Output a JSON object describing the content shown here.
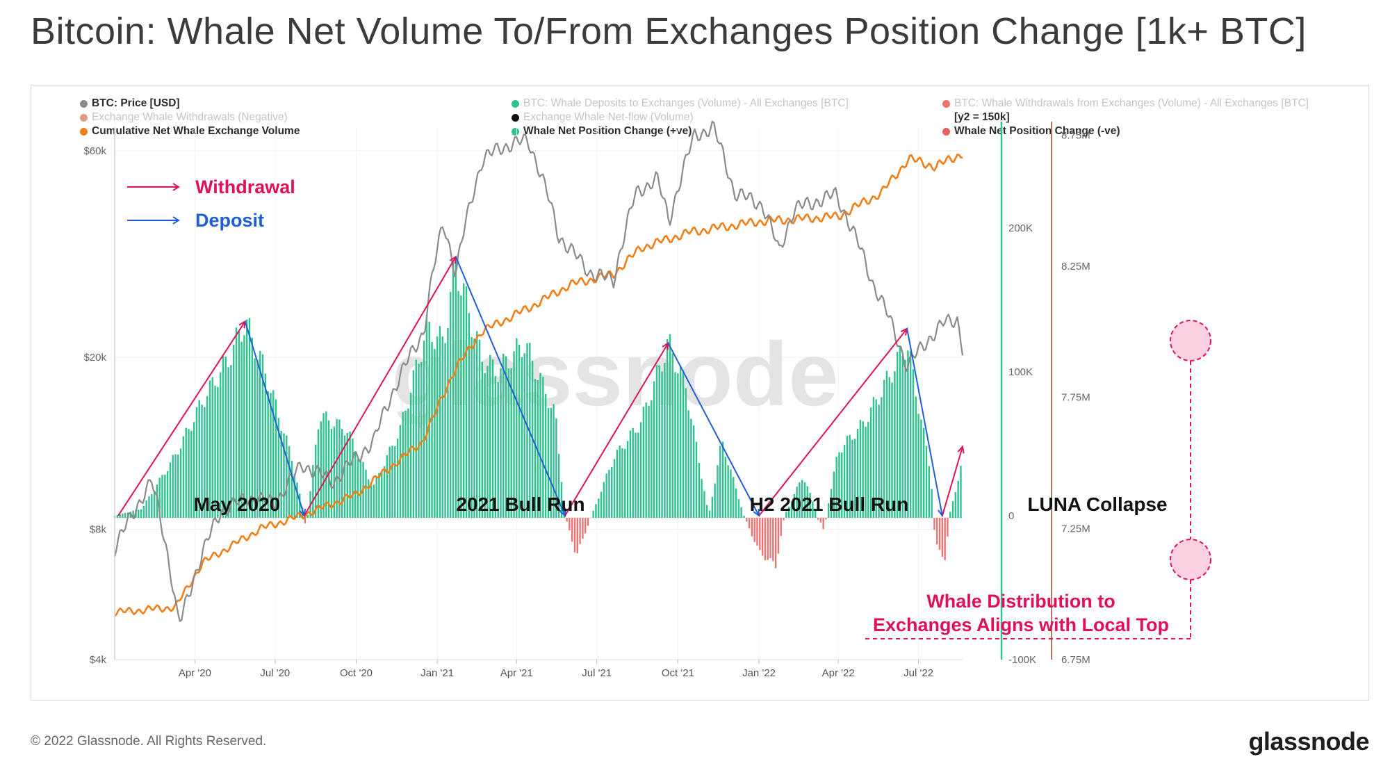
{
  "title": "Bitcoin: Whale Net Volume To/From Exchanges Position Change [1k+ BTC]",
  "legend": [
    {
      "label": "BTC: Price [USD]",
      "color": "#8a8a8a",
      "muted": false
    },
    {
      "label": "Exchange Whale Withdrawals (Negative)",
      "color": "#e09a80",
      "muted": true
    },
    {
      "label": "Cumulative Net Whale Exchange Volume",
      "color": "#f07f1a",
      "muted": false
    },
    {
      "label": "BTC: Whale Deposits to Exchanges (Volume) - All Exchanges [BTC]",
      "color": "#2ec28e",
      "muted": true
    },
    {
      "label": "Exchange Whale Net-flow (Volume)",
      "color": "#111111",
      "muted": true
    },
    {
      "label": "Whale Net Position Change (+ve)",
      "color": "#2ec28e",
      "muted": false
    },
    {
      "label": "BTC: Whale Withdrawals from Exchanges (Volume) - All Exchanges [BTC]",
      "color": "#f07070",
      "muted": true
    },
    {
      "label": "[y2 = 150k]",
      "color": "",
      "muted": false
    },
    {
      "label": "Whale Net Position Change (-ve)",
      "color": "#e86060",
      "muted": false
    }
  ],
  "footer": {
    "copyright": "© 2022 Glassnode. All Rights Reserved.",
    "brand": "glassnode",
    "watermark": "glassnode"
  },
  "colors": {
    "price": "#8a8a8a",
    "cumulative": "#f07f1a",
    "positive": "#2ec28e",
    "negative": "#ee7474",
    "withdrawal_arrow": "#e0105a",
    "deposit_arrow": "#1f5fd6",
    "annotation": "#e0105a"
  },
  "chart_data": {
    "type": "line",
    "x_ticks": [
      "Apr '20",
      "Jul '20",
      "Oct '20",
      "Jan '21",
      "Apr '21",
      "Jul '21",
      "Oct '21",
      "Jan '22",
      "Apr '22",
      "Jul '22"
    ],
    "x_range": [
      "2020-01-01",
      "2022-08-20"
    ],
    "y_left": {
      "label": "",
      "scale": "log",
      "ticks": [
        "$4k",
        "$8k",
        "$20k",
        "$60k"
      ],
      "tick_values": [
        4000,
        8000,
        20000,
        60000
      ],
      "range": [
        4000,
        68000
      ]
    },
    "y_right": {
      "label": "",
      "ticks": [
        "-100K",
        "0",
        "100K",
        "200K"
      ],
      "tick_values": [
        -100000,
        0,
        100000,
        200000
      ],
      "range": [
        -100000,
        270000
      ]
    },
    "y_right2": {
      "label": "",
      "ticks": [
        "6.75M",
        "7.25M",
        "7.75M",
        "8.25M",
        "8.75M"
      ],
      "tick_values": [
        6750000,
        7250000,
        7750000,
        8250000,
        8750000
      ],
      "range": [
        6750000,
        8780000
      ]
    },
    "series": [
      {
        "name": "BTC: Price [USD]",
        "axis": "left",
        "points": [
          [
            "2020-01-01",
            7200
          ],
          [
            "2020-02-12",
            10300
          ],
          [
            "2020-03-12",
            5000
          ],
          [
            "2020-03-16",
            4900
          ],
          [
            "2020-04-30",
            8800
          ],
          [
            "2020-06-01",
            9500
          ],
          [
            "2020-07-01",
            9200
          ],
          [
            "2020-08-01",
            11300
          ],
          [
            "2020-09-05",
            10300
          ],
          [
            "2020-10-21",
            12800
          ],
          [
            "2020-11-25",
            19000
          ],
          [
            "2020-12-17",
            23000
          ],
          [
            "2021-01-08",
            41000
          ],
          [
            "2021-01-22",
            31000
          ],
          [
            "2021-02-21",
            57000
          ],
          [
            "2021-03-13",
            61000
          ],
          [
            "2021-04-14",
            63500
          ],
          [
            "2021-05-19",
            38000
          ],
          [
            "2021-06-22",
            31500
          ],
          [
            "2021-07-20",
            30000
          ],
          [
            "2021-08-14",
            47500
          ],
          [
            "2021-09-07",
            52000
          ],
          [
            "2021-09-21",
            41000
          ],
          [
            "2021-10-20",
            65000
          ],
          [
            "2021-11-10",
            68000
          ],
          [
            "2021-12-04",
            48000
          ],
          [
            "2022-01-05",
            45000
          ],
          [
            "2022-01-24",
            35000
          ],
          [
            "2022-02-10",
            44000
          ],
          [
            "2022-03-29",
            47500
          ],
          [
            "2022-05-09",
            30000
          ],
          [
            "2022-06-18",
            19000
          ],
          [
            "2022-07-08",
            21500
          ],
          [
            "2022-07-30",
            24000
          ],
          [
            "2022-08-14",
            24500
          ],
          [
            "2022-08-20",
            21000
          ]
        ]
      },
      {
        "name": "Cumulative Net Whale Exchange Volume",
        "axis": "right2",
        "points": [
          [
            "2020-01-01",
            6930000
          ],
          [
            "2020-03-10",
            6950000
          ],
          [
            "2020-04-10",
            7120000
          ],
          [
            "2020-06-15",
            7250000
          ],
          [
            "2020-08-01",
            7300000
          ],
          [
            "2020-10-01",
            7380000
          ],
          [
            "2020-12-15",
            7580000
          ],
          [
            "2021-01-20",
            7850000
          ],
          [
            "2021-02-20",
            8000000
          ],
          [
            "2021-04-20",
            8100000
          ],
          [
            "2021-06-01",
            8180000
          ],
          [
            "2021-07-20",
            8220000
          ],
          [
            "2021-08-20",
            8320000
          ],
          [
            "2021-10-15",
            8380000
          ],
          [
            "2021-12-31",
            8420000
          ],
          [
            "2022-02-15",
            8430000
          ],
          [
            "2022-04-01",
            8440000
          ],
          [
            "2022-05-20",
            8530000
          ],
          [
            "2022-06-20",
            8660000
          ],
          [
            "2022-07-20",
            8630000
          ],
          [
            "2022-08-20",
            8680000
          ]
        ]
      },
      {
        "name": "Whale Net Position Change",
        "axis": "right",
        "points": [
          [
            "2020-01-01",
            0
          ],
          [
            "2020-02-01",
            5000
          ],
          [
            "2020-03-10",
            42000
          ],
          [
            "2020-04-10",
            80000
          ],
          [
            "2020-05-10",
            110000
          ],
          [
            "2020-05-28",
            135000
          ],
          [
            "2020-06-20",
            100000
          ],
          [
            "2020-07-20",
            40000
          ],
          [
            "2020-08-03",
            0
          ],
          [
            "2020-08-05",
            -10000
          ],
          [
            "2020-08-20",
            70000
          ],
          [
            "2020-09-20",
            60000
          ],
          [
            "2020-10-20",
            20000
          ],
          [
            "2020-11-20",
            60000
          ],
          [
            "2020-12-20",
            130000
          ],
          [
            "2021-01-08",
            120000
          ],
          [
            "2021-01-22",
            175000
          ],
          [
            "2021-02-20",
            110000
          ],
          [
            "2021-03-10",
            100000
          ],
          [
            "2021-04-10",
            120000
          ],
          [
            "2021-05-15",
            70000
          ],
          [
            "2021-05-26",
            0
          ],
          [
            "2021-06-08",
            -28000
          ],
          [
            "2021-06-25",
            0
          ],
          [
            "2021-07-20",
            40000
          ],
          [
            "2021-08-20",
            65000
          ],
          [
            "2021-09-20",
            120000
          ],
          [
            "2021-10-10",
            90000
          ],
          [
            "2021-11-05",
            0
          ],
          [
            "2021-11-20",
            52000
          ],
          [
            "2021-12-15",
            0
          ],
          [
            "2022-01-01",
            -25000
          ],
          [
            "2022-01-20",
            -35000
          ],
          [
            "2022-01-30",
            0
          ],
          [
            "2022-02-20",
            28000
          ],
          [
            "2022-03-15",
            -10000
          ],
          [
            "2022-04-01",
            45000
          ],
          [
            "2022-05-01",
            65000
          ],
          [
            "2022-06-18",
            120000
          ],
          [
            "2022-07-15",
            30000
          ],
          [
            "2022-07-20",
            -20000
          ],
          [
            "2022-08-01",
            -30000
          ],
          [
            "2022-08-05",
            0
          ],
          [
            "2022-08-20",
            38000
          ]
        ]
      }
    ]
  },
  "annotations": {
    "withdrawal_label": "Withdrawal",
    "deposit_label": "Deposit",
    "phases": [
      "May 2020",
      "2021 Bull Run",
      "H2 2021 Bull Run",
      "LUNA Collapse"
    ],
    "whale_note_line1": "Whale Distribution to",
    "whale_note_line2": "Exchanges Aligns with Local Top"
  }
}
